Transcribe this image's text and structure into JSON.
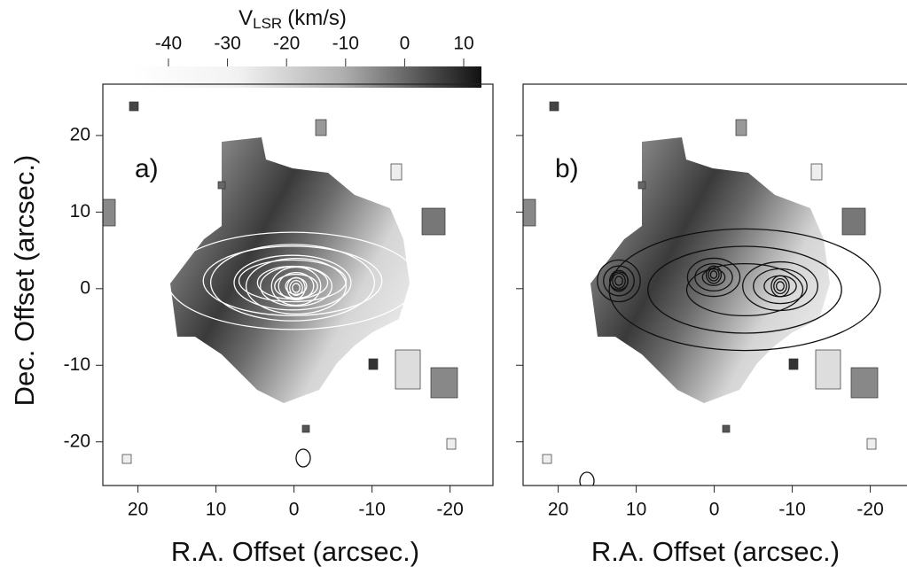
{
  "colorbar": {
    "label": "V",
    "label_sub": "LSR",
    "label_unit": "(km/s)",
    "lim": [
      -46,
      13
    ],
    "ticks": [
      -40,
      -30,
      -20,
      -10,
      0,
      10
    ]
  },
  "chart_data": [
    {
      "type": "map",
      "panel_label": "a)",
      "x_label": "R.A. Offset (arcsec.)",
      "y_label": "Dec. Offset (arcsec.)",
      "xlim": [
        24.5,
        -25.5
      ],
      "ylim": [
        -25.7,
        26.7
      ],
      "xticks": [
        20,
        10,
        0,
        -10,
        -20
      ],
      "yticks": [
        20,
        10,
        0,
        -10,
        -20
      ],
      "contour_color": "#ffffff",
      "ytick_labels": true
    },
    {
      "type": "map",
      "panel_label": "b)",
      "x_label": "R.A. Offset (arcsec.)",
      "xlim": [
        24.5,
        -25.5
      ],
      "ylim": [
        -25.7,
        26.7
      ],
      "xticks": [
        20,
        10,
        0,
        -10,
        -20
      ],
      "yticks": [
        20,
        10,
        0,
        -10,
        -20
      ],
      "contour_color": "#111111",
      "ytick_labels": false
    }
  ]
}
